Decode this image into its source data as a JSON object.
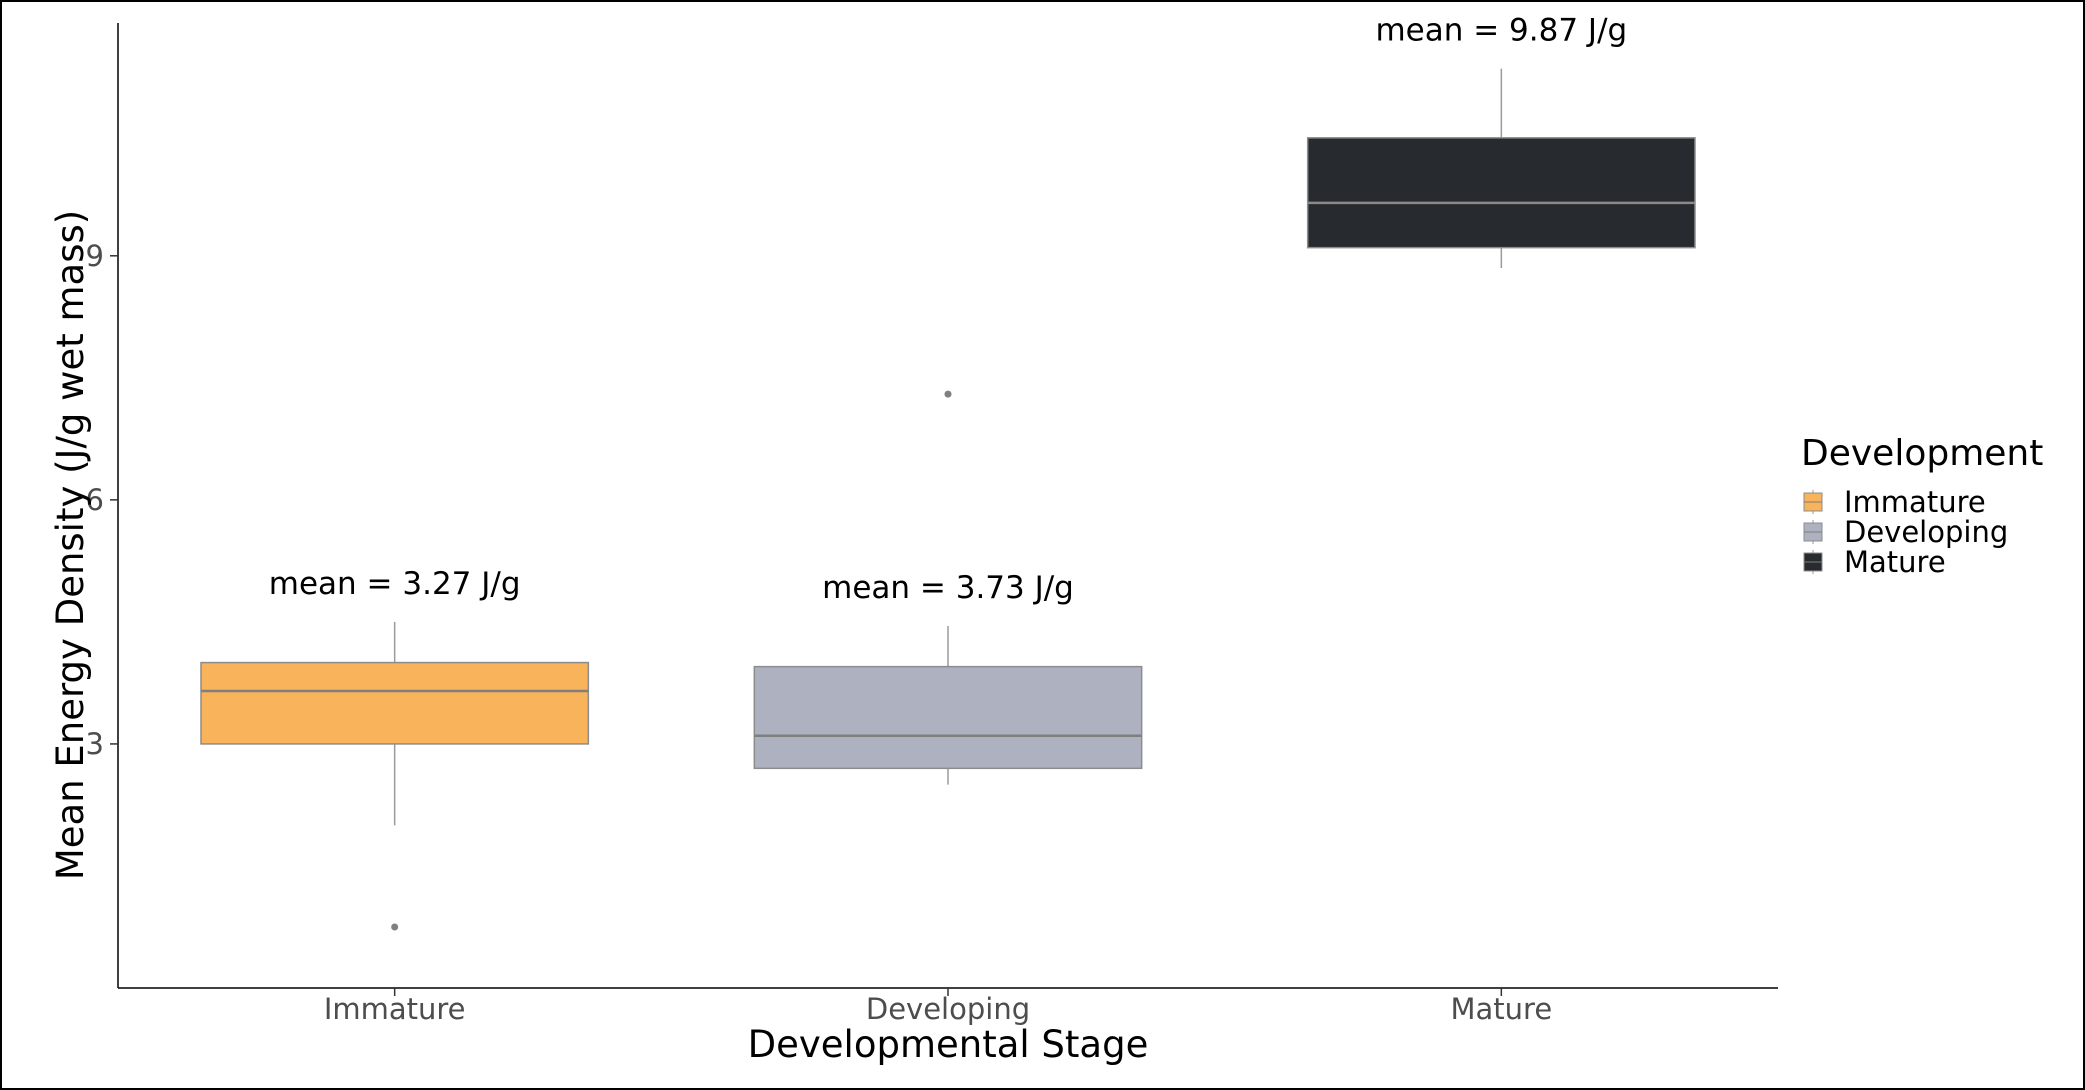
{
  "chart_data": {
    "type": "boxplot",
    "xlabel": "Developmental Stage",
    "ylabel": "Mean Energy Density (J/g wet mass)",
    "ylim": [
      0.0,
      11.8
    ],
    "yticks": [
      3,
      6,
      9
    ],
    "grid": false,
    "legend": {
      "title": "Development",
      "position": "right",
      "entries": [
        "Immature",
        "Developing",
        "Mature"
      ]
    },
    "categories": [
      "Immature",
      "Developing",
      "Mature"
    ],
    "boxes": [
      {
        "category": "Immature",
        "color": "#F8B35B",
        "whisker_low": 2.0,
        "q1": 3.0,
        "median": 3.65,
        "q3": 4.0,
        "whisker_high": 4.5,
        "outliers": [
          0.75
        ],
        "annotation": "mean = 3.27 J/g"
      },
      {
        "category": "Developing",
        "color": "#AEB1C0",
        "whisker_low": 2.5,
        "q1": 2.7,
        "median": 3.1,
        "q3": 3.95,
        "whisker_high": 4.45,
        "outliers": [
          7.3
        ],
        "annotation": "mean = 3.73 J/g"
      },
      {
        "category": "Mature",
        "color": "#272B2F",
        "whisker_low": 8.85,
        "q1": 9.1,
        "median": 9.65,
        "q3": 10.45,
        "whisker_high": 11.3,
        "outliers": [],
        "annotation": "mean = 9.87 J/g"
      }
    ]
  }
}
